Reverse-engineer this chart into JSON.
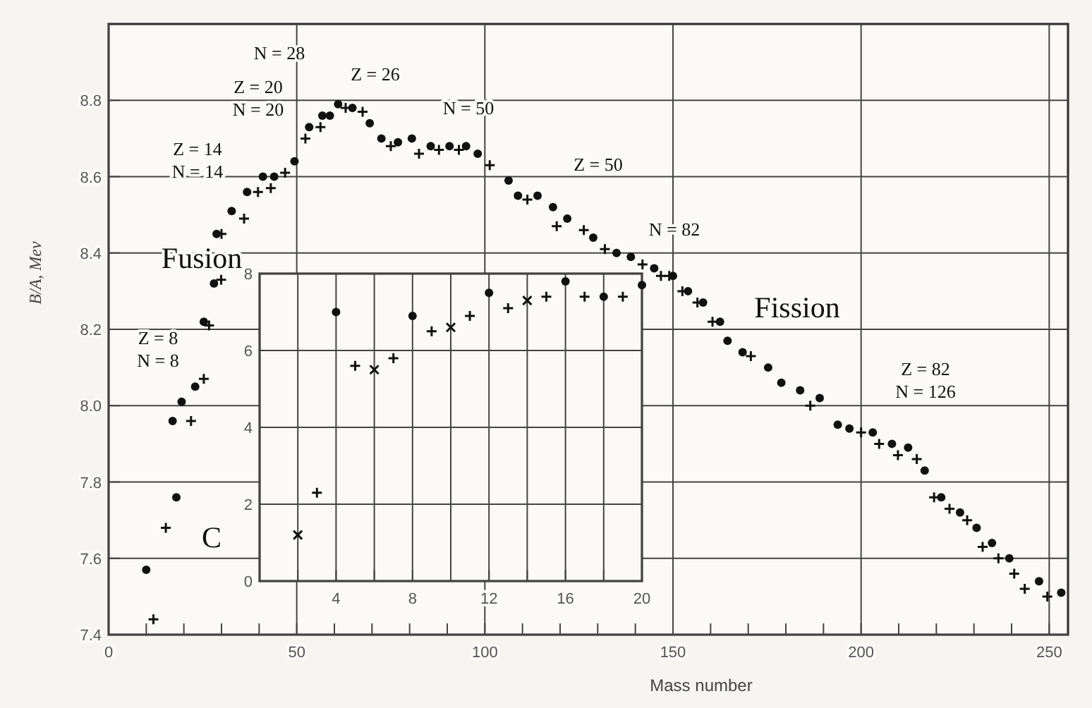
{
  "chart_data": [
    {
      "type": "scatter",
      "xlabel": "Mass number",
      "ylabel": "B/A, Mev",
      "xlim": [
        0,
        255
      ],
      "ylim": [
        7.4,
        9.0
      ],
      "xticks": [
        0,
        {
          "value": 10,
          "label": null
        },
        {
          "value": 20,
          "label": null
        },
        {
          "value": 30,
          "label": null
        },
        {
          "value": 40,
          "label": null
        },
        50,
        {
          "value": 60,
          "label": null
        },
        {
          "value": 70,
          "label": null
        },
        {
          "value": 80,
          "label": null
        },
        {
          "value": 90,
          "label": null
        },
        100,
        {
          "value": 110,
          "label": null
        },
        {
          "value": 120,
          "label": null
        },
        {
          "value": 130,
          "label": null
        },
        {
          "value": 140,
          "label": null
        },
        150,
        {
          "value": 160,
          "label": null
        },
        {
          "value": 170,
          "label": null
        },
        {
          "value": 180,
          "label": null
        },
        {
          "value": 190,
          "label": null
        },
        200,
        {
          "value": 210,
          "label": null
        },
        {
          "value": 220,
          "label": null
        },
        {
          "value": 230,
          "label": null
        },
        {
          "value": 240,
          "label": null
        },
        250
      ],
      "yticks": [
        7.4,
        7.6,
        7.8,
        {
          "value": 8,
          "label": "8.0"
        },
        8.2,
        8.4,
        8.6,
        8.8
      ],
      "grid": true,
      "series": [
        {
          "color": "#111111",
          "marker": "circle",
          "x": [
            10,
            17,
            18,
            19.4,
            23,
            25.3,
            28,
            28.7,
            32.7,
            36.8,
            41,
            44,
            49.4,
            53.3,
            56.8,
            58.8,
            61,
            64.8,
            69.4,
            72.5,
            76.9,
            80.6,
            85.6,
            90.6,
            95,
            98.1,
            106.3,
            108.8,
            114,
            118.1,
            121.9,
            128.8,
            135,
            138.8,
            145,
            150,
            154,
            158,
            162.5,
            164.5,
            168.5,
            175.3,
            178.8,
            183.8,
            189,
            193.8,
            196.9,
            203.1,
            208.2,
            212.5,
            216.9,
            221.3,
            226.3,
            230.7,
            234.8,
            239.4,
            247.3,
            253.2
          ],
          "values": [
            7.57,
            7.96,
            7.76,
            8.01,
            8.05,
            8.22,
            8.32,
            8.45,
            8.51,
            8.56,
            8.6,
            8.6,
            8.64,
            8.73,
            8.76,
            8.76,
            8.79,
            8.78,
            8.74,
            8.7,
            8.69,
            8.7,
            8.68,
            8.68,
            8.68,
            8.66,
            8.59,
            8.55,
            8.55,
            8.52,
            8.49,
            8.44,
            8.4,
            8.39,
            8.36,
            8.34,
            8.3,
            8.27,
            8.22,
            8.17,
            8.14,
            8.1,
            8.06,
            8.04,
            8.02,
            7.95,
            7.94,
            7.93,
            7.9,
            7.89,
            7.83,
            7.76,
            7.72,
            7.68,
            7.64,
            7.6,
            7.54,
            7.51
          ]
        },
        {
          "color": "#111111",
          "marker": "cross",
          "x": [
            11.9,
            15.2,
            21.9,
            25.3,
            26.7,
            29.9,
            30,
            36,
            39.7,
            43.1,
            46.9,
            52.3,
            56.3,
            63,
            67.5,
            75,
            82.5,
            87.8,
            93.1,
            101.3,
            111.3,
            119.1,
            126.3,
            131.9,
            141.9,
            146.8,
            149,
            152.5,
            156.5,
            160.5,
            170.7,
            186.5,
            200,
            204.8,
            209.8,
            214.8,
            219.4,
            223.5,
            228.2,
            232.3,
            236.5,
            240.7,
            243.5,
            249.5
          ],
          "values": [
            7.44,
            7.68,
            7.96,
            8.07,
            8.21,
            8.33,
            8.45,
            8.49,
            8.56,
            8.57,
            8.61,
            8.7,
            8.73,
            8.78,
            8.77,
            8.68,
            8.66,
            8.67,
            8.67,
            8.63,
            8.54,
            8.47,
            8.46,
            8.41,
            8.37,
            8.34,
            8.34,
            8.3,
            8.27,
            8.22,
            8.13,
            8.0,
            7.93,
            7.9,
            7.87,
            7.86,
            7.76,
            7.73,
            7.7,
            7.63,
            7.6,
            7.56,
            7.52,
            7.5
          ]
        }
      ],
      "annotations": [
        "N = 28",
        "Z = 20\nN = 20",
        "Z = 14\nN = 14",
        "Z = 26",
        "N = 50",
        "Z = 50",
        "N = 82",
        "Z = 82\nN = 126",
        "Z = 8\nN = 8",
        "Fusion",
        "Fission",
        "C"
      ]
    },
    {
      "type": "scatter",
      "xlim": [
        0,
        20
      ],
      "ylim": [
        0,
        8
      ],
      "xticks": [
        {
          "value": 0,
          "label": null
        },
        {
          "value": 2,
          "label": null
        },
        4,
        {
          "value": 6,
          "label": null
        },
        8,
        {
          "value": 10,
          "label": null
        },
        12,
        {
          "value": 14,
          "label": null
        },
        16,
        {
          "value": 18,
          "label": null
        },
        20
      ],
      "yticks": [
        0,
        2,
        4,
        6,
        8
      ],
      "grid": true,
      "series": [
        {
          "color": "#111111",
          "marker": "circle",
          "x": [
            4,
            8,
            12,
            16,
            18,
            20
          ],
          "values": [
            7.0,
            6.9,
            7.5,
            7.8,
            7.4,
            7.7
          ]
        },
        {
          "color": "#111111",
          "marker": "cross",
          "x": [
            3,
            5,
            7,
            9,
            11,
            13,
            15,
            17,
            19
          ],
          "values": [
            2.3,
            5.6,
            5.8,
            6.5,
            6.9,
            7.1,
            7.4,
            7.4,
            7.4
          ]
        },
        {
          "color": "#111111",
          "marker": "x",
          "x": [
            2,
            6,
            10,
            14
          ],
          "values": [
            1.2,
            5.5,
            6.6,
            7.3
          ]
        }
      ]
    }
  ]
}
